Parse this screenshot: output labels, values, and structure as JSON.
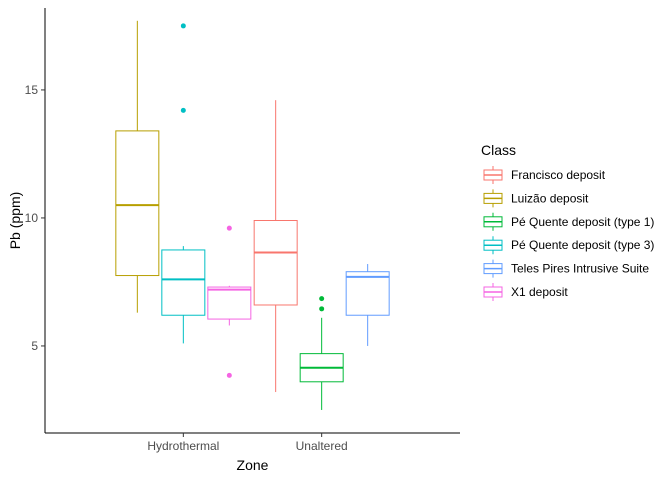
{
  "chart_data": {
    "type": "box",
    "xlabel": "Zone",
    "ylabel": "Pb (ppm)",
    "categories": [
      "Hydrothermal",
      "Unaltered"
    ],
    "ylim": [
      1.6,
      18.2
    ],
    "yticks": [
      5,
      10,
      15
    ],
    "legend": {
      "title": "Class",
      "position": "right"
    },
    "grid": false,
    "series": [
      {
        "name": "Francisco deposit",
        "color": "#F8766D",
        "boxes": [
          {
            "category": "Unaltered",
            "min": 3.2,
            "q1": 6.6,
            "median": 8.65,
            "q3": 9.9,
            "max": 14.6,
            "outliers": []
          }
        ]
      },
      {
        "name": "Luizão deposit",
        "color": "#B79F00",
        "boxes": [
          {
            "category": "Hydrothermal",
            "min": 6.3,
            "q1": 7.75,
            "median": 10.5,
            "q3": 13.4,
            "max": 17.7,
            "outliers": []
          }
        ]
      },
      {
        "name": "Pé Quente deposit (type 1)",
        "color": "#00BA38",
        "boxes": [
          {
            "category": "Unaltered",
            "min": 2.5,
            "q1": 3.6,
            "median": 4.15,
            "q3": 4.7,
            "max": 6.1,
            "outliers": [
              6.45,
              6.85
            ]
          }
        ]
      },
      {
        "name": "Pé Quente deposit (type 3)",
        "color": "#00BFC4",
        "boxes": [
          {
            "category": "Hydrothermal",
            "min": 5.1,
            "q1": 6.2,
            "median": 7.6,
            "q3": 8.75,
            "max": 8.9,
            "outliers": [
              14.2,
              17.5
            ]
          }
        ]
      },
      {
        "name": "Teles Pires Intrusive Suite",
        "color": "#619CFF",
        "boxes": [
          {
            "category": "Unaltered",
            "min": 5.0,
            "q1": 6.2,
            "median": 7.7,
            "q3": 7.9,
            "max": 8.2,
            "outliers": []
          }
        ]
      },
      {
        "name": "X1 deposit",
        "color": "#F564E3",
        "boxes": [
          {
            "category": "Hydrothermal",
            "min": 5.8,
            "q1": 6.05,
            "median": 7.2,
            "q3": 7.3,
            "max": 7.35,
            "outliers": [
              3.85,
              9.6
            ]
          }
        ]
      }
    ]
  }
}
